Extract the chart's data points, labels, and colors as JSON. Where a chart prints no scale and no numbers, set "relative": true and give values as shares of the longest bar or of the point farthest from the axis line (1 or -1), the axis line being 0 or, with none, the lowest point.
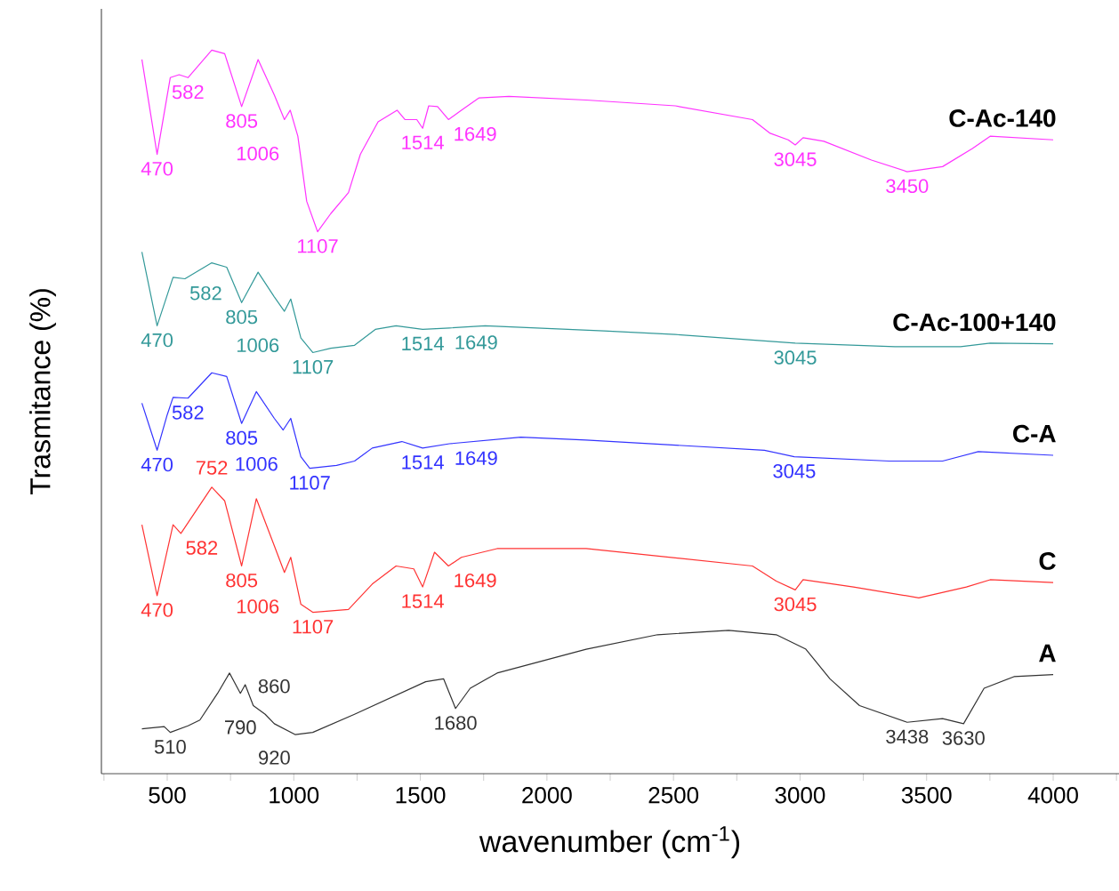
{
  "chart_data": {
    "type": "line",
    "xlabel": "wavenumber (cm$^{-1}$)",
    "ylabel": "Trasmitance (%)",
    "relative": true,
    "xlim": [
      240,
      4260
    ],
    "xticks": [
      {
        "value": 250,
        "label": null
      },
      500,
      {
        "value": 750,
        "label": null
      },
      1000,
      {
        "value": 1250,
        "label": null
      },
      1500,
      {
        "value": 1750,
        "label": null
      },
      2000,
      {
        "value": 2250,
        "label": null
      },
      2500,
      {
        "value": 2750,
        "label": null
      },
      3000,
      {
        "value": 3250,
        "label": null
      },
      3500,
      {
        "value": 3750,
        "label": null
      },
      4000,
      {
        "value": 4250,
        "label": null
      }
    ],
    "series": [
      {
        "name": "C-Ac-140",
        "color": "#ff33ff",
        "x": [
          400,
          460,
          512,
          547,
          582,
          676,
          727,
          794,
          859,
          923,
          963,
          986,
          1016,
          1051,
          1094,
          1146,
          1216,
          1263,
          1333,
          1408,
          1439,
          1486,
          1509,
          1533,
          1568,
          1611,
          1662,
          1732,
          1850,
          2155,
          2507,
          2812,
          2882,
          2953,
          2981,
          3012,
          3094,
          3282,
          3423,
          3563,
          3681,
          3751,
          4000
        ],
        "values": [
          0.987,
          0.856,
          0.962,
          0.966,
          0.962,
          1.0,
          0.995,
          0.922,
          0.987,
          0.938,
          0.904,
          0.917,
          0.881,
          0.791,
          0.749,
          0.774,
          0.803,
          0.856,
          0.901,
          0.917,
          0.904,
          0.904,
          0.892,
          0.923,
          0.922,
          0.904,
          0.917,
          0.934,
          0.936,
          0.931,
          0.923,
          0.904,
          0.885,
          0.876,
          0.869,
          0.879,
          0.874,
          0.848,
          0.832,
          0.839,
          0.864,
          0.881,
          0.876
        ]
      },
      {
        "name": "C-Ac-100+140",
        "color": "#339999",
        "x": [
          400,
          460,
          523,
          570,
          676,
          735,
          794,
          859,
          923,
          963,
          988,
          1028,
          1075,
          1146,
          1240,
          1322,
          1404,
          1509,
          1615,
          1756,
          2225,
          2507,
          2859,
          2981,
          3375,
          3634,
          3751,
          4000
        ],
        "values": [
          0.721,
          0.619,
          0.686,
          0.684,
          0.706,
          0.7,
          0.651,
          0.693,
          0.659,
          0.639,
          0.656,
          0.602,
          0.582,
          0.588,
          0.592,
          0.614,
          0.619,
          0.614,
          0.616,
          0.619,
          0.612,
          0.607,
          0.598,
          0.595,
          0.59,
          0.59,
          0.595,
          0.594
        ]
      },
      {
        "name": "C-A",
        "color": "#3333ff",
        "x": [
          400,
          460,
          500,
          523,
          582,
          676,
          735,
          794,
          852,
          923,
          958,
          988,
          1028,
          1063,
          1169,
          1240,
          1310,
          1427,
          1509,
          1615,
          1897,
          2155,
          2859,
          2977,
          3352,
          3563,
          3704,
          4000
        ],
        "values": [
          0.512,
          0.447,
          0.496,
          0.52,
          0.519,
          0.554,
          0.549,
          0.484,
          0.528,
          0.491,
          0.475,
          0.491,
          0.438,
          0.422,
          0.426,
          0.432,
          0.45,
          0.459,
          0.45,
          0.456,
          0.465,
          0.461,
          0.447,
          0.438,
          0.432,
          0.432,
          0.445,
          0.44
        ]
      },
      {
        "name": "C",
        "color": "#ff3333",
        "x": [
          400,
          460,
          523,
          554,
          676,
          727,
          794,
          852,
          923,
          963,
          988,
          1028,
          1075,
          1216,
          1310,
          1404,
          1474,
          1509,
          1556,
          1611,
          1662,
          1803,
          2155,
          2812,
          2906,
          2981,
          3012,
          3211,
          3469,
          3657,
          3751,
          4000
        ],
        "values": [
          0.344,
          0.246,
          0.344,
          0.332,
          0.396,
          0.377,
          0.287,
          0.38,
          0.315,
          0.278,
          0.299,
          0.234,
          0.223,
          0.227,
          0.262,
          0.287,
          0.283,
          0.258,
          0.306,
          0.287,
          0.299,
          0.311,
          0.311,
          0.287,
          0.266,
          0.254,
          0.268,
          0.258,
          0.243,
          0.258,
          0.268,
          0.264
        ]
      },
      {
        "name": "A",
        "color": "#333333",
        "x": [
          400,
          488,
          512,
          582,
          629,
          699,
          746,
          789,
          808,
          840,
          887,
          923,
          1005,
          1075,
          1240,
          1521,
          1592,
          1639,
          1697,
          1803,
          2155,
          2437,
          2718,
          2906,
          3023,
          3118,
          3235,
          3423,
          3563,
          3646,
          3727,
          3845,
          4000
        ],
        "values": [
          0.062,
          0.065,
          0.057,
          0.066,
          0.074,
          0.111,
          0.139,
          0.111,
          0.123,
          0.094,
          0.082,
          0.069,
          0.054,
          0.057,
          0.082,
          0.127,
          0.131,
          0.09,
          0.118,
          0.139,
          0.172,
          0.192,
          0.198,
          0.192,
          0.172,
          0.131,
          0.094,
          0.071,
          0.076,
          0.069,
          0.118,
          0.134,
          0.137
        ]
      }
    ],
    "annotations": [
      {
        "text": "470",
        "x": 460,
        "y": 0.856
      },
      {
        "text": "582",
        "x": 582,
        "y": 0.962
      },
      {
        "text": "805",
        "x": 794,
        "y": 0.922
      },
      {
        "text": "1006",
        "x": 963,
        "y": 0.904
      },
      {
        "text": "1107",
        "x": 1094,
        "y": 0.749
      },
      {
        "text": "1514",
        "x": 1509,
        "y": 0.892
      },
      {
        "text": "1649",
        "x": 1611,
        "y": 0.904
      },
      {
        "text": "3045",
        "x": 2981,
        "y": 0.869
      },
      {
        "text": "3450",
        "x": 3423,
        "y": 0.832
      },
      {
        "text": "470",
        "x": 460,
        "y": 0.619
      },
      {
        "text": "582",
        "x": 570,
        "y": 0.684
      },
      {
        "text": "805",
        "x": 794,
        "y": 0.651
      },
      {
        "text": "1006",
        "x": 963,
        "y": 0.639
      },
      {
        "text": "1107",
        "x": 1075,
        "y": 0.582
      },
      {
        "text": "1514",
        "x": 1509,
        "y": 0.614
      },
      {
        "text": "1649",
        "x": 1615,
        "y": 0.616
      },
      {
        "text": "3045",
        "x": 2981,
        "y": 0.595
      },
      {
        "text": "470",
        "x": 460,
        "y": 0.447
      },
      {
        "text": "582",
        "x": 582,
        "y": 0.519
      },
      {
        "text": "805",
        "x": 794,
        "y": 0.484
      },
      {
        "text": "1006",
        "x": 958,
        "y": 0.475
      },
      {
        "text": "1107",
        "x": 1063,
        "y": 0.422
      },
      {
        "text": "1514",
        "x": 1509,
        "y": 0.45
      },
      {
        "text": "1649",
        "x": 1615,
        "y": 0.456
      },
      {
        "text": "3045",
        "x": 2977,
        "y": 0.438
      },
      {
        "text": "470",
        "x": 460,
        "y": 0.246
      },
      {
        "text": "582",
        "x": 554,
        "y": 0.332
      },
      {
        "text": "752",
        "x": 676,
        "y": 0.396
      },
      {
        "text": "805",
        "x": 794,
        "y": 0.287
      },
      {
        "text": "1006",
        "x": 963,
        "y": 0.278
      },
      {
        "text": "1107",
        "x": 1075,
        "y": 0.223
      },
      {
        "text": "1514",
        "x": 1509,
        "y": 0.258
      },
      {
        "text": "1649",
        "x": 1611,
        "y": 0.287
      },
      {
        "text": "3045",
        "x": 2981,
        "y": 0.254
      },
      {
        "text": "510",
        "x": 512,
        "y": 0.057
      },
      {
        "text": "790",
        "x": 789,
        "y": 0.111
      },
      {
        "text": "860",
        "x": 840,
        "y": 0.094
      },
      {
        "text": "920",
        "x": 923,
        "y": 0.069
      },
      {
        "text": "1680",
        "x": 1639,
        "y": 0.09
      },
      {
        "text": "3438",
        "x": 3423,
        "y": 0.071
      },
      {
        "text": "3630",
        "x": 3646,
        "y": 0.069
      }
    ]
  }
}
